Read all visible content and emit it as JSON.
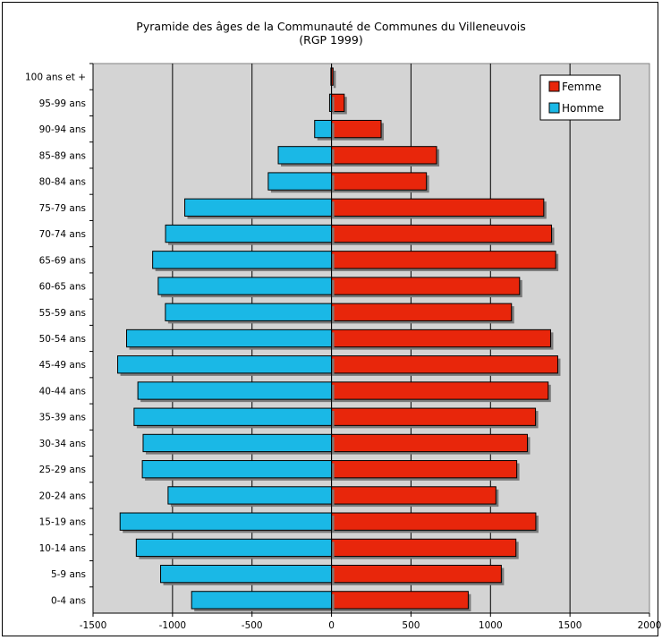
{
  "chart_data": {
    "type": "bar",
    "orientation": "horizontal",
    "title": "Pyramide des âges de la Communauté de Communes du Villeneuvois",
    "subtitle": "(RGP 1999)",
    "categories": [
      "100 ans et +",
      "95-99 ans",
      "90-94 ans",
      "85-89 ans",
      "80-84 ans",
      "75-79 ans",
      "70-74 ans",
      "65-69 ans",
      "60-65 ans",
      "55-59 ans",
      "50-54 ans",
      "45-49 ans",
      "40-44 ans",
      "35-39 ans",
      "30-34 ans",
      "25-29 ans",
      "20-24 ans",
      "15-19 ans",
      "10-14 ans",
      "5-9 ans",
      "0-4 ans"
    ],
    "series": [
      {
        "name": "Femme",
        "color": "#e8260b",
        "values": [
          10,
          80,
          312,
          661,
          597,
          1335,
          1384,
          1410,
          1183,
          1132,
          1378,
          1423,
          1363,
          1283,
          1232,
          1165,
          1034,
          1285,
          1160,
          1068,
          860
        ]
      },
      {
        "name": "Homme",
        "color": "#1ab8e6",
        "values": [
          -4,
          -12,
          -106,
          -335,
          -398,
          -923,
          -1044,
          -1125,
          -1090,
          -1045,
          -1289,
          -1345,
          -1218,
          -1242,
          -1185,
          -1190,
          -1028,
          -1330,
          -1228,
          -1075,
          -880
        ]
      }
    ],
    "xlim": [
      -1500,
      2000
    ],
    "xticks": [
      "-1500",
      "-1000",
      "-500",
      "0",
      "500",
      "1000",
      "1500",
      "2000"
    ],
    "grid": true,
    "legend": "top-right",
    "plot_bg": "#d4d4d4"
  }
}
